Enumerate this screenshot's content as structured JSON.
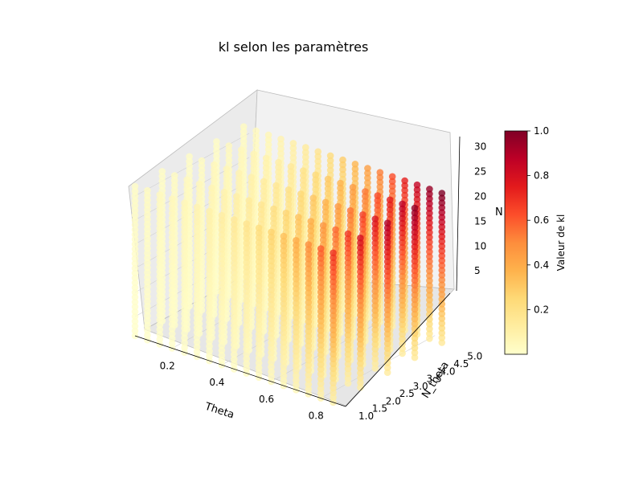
{
  "chart_data": {
    "type": "scatter",
    "projection": "3d",
    "title": "kl selon les paramètres",
    "xlabel": "Theta",
    "ylabel": "N_theta",
    "zlabel": "N",
    "colorbar_label": "Valeur de kl",
    "colormap": "YlOrRd",
    "marker_alpha": 0.8,
    "x_ticks": [
      "0.2",
      "0.4",
      "0.6",
      "0.8"
    ],
    "y_ticks": [
      "1.0",
      "1.5",
      "2.0",
      "2.5",
      "3.0",
      "3.5",
      "4.0",
      "4.5",
      "5.0"
    ],
    "z_ticks": [
      "5",
      "10",
      "15",
      "20",
      "25",
      "30"
    ],
    "colorbar_ticks": [
      "0.2",
      "0.4",
      "0.6",
      "0.8",
      "1.0"
    ],
    "xlim": [
      0.05,
      0.9
    ],
    "ylim": [
      1.0,
      5.2
    ],
    "zlim": [
      1,
      32
    ],
    "colorbar_range": [
      0.0,
      1.0
    ],
    "grid": true,
    "series": [
      {
        "n_theta": 1,
        "theta": [
          0.05,
          0.1,
          0.15,
          0.2,
          0.25,
          0.3,
          0.35,
          0.4,
          0.45,
          0.5,
          0.55,
          0.6,
          0.65,
          0.7,
          0.75,
          0.8,
          0.85
        ],
        "n_range": [
          1,
          32
        ],
        "kl_at_max": [
          0.02,
          0.03,
          0.04,
          0.05,
          0.06,
          0.08,
          0.1,
          0.12,
          0.15,
          0.18,
          0.22,
          0.27,
          0.33,
          0.4,
          0.5,
          0.6,
          0.7
        ]
      },
      {
        "n_theta": 2,
        "theta": [
          0.05,
          0.1,
          0.15,
          0.2,
          0.25,
          0.3,
          0.35,
          0.4,
          0.45,
          0.5,
          0.55,
          0.6,
          0.65,
          0.7,
          0.75,
          0.8,
          0.85
        ],
        "n_range": [
          1,
          32
        ],
        "kl_at_max": [
          0.02,
          0.03,
          0.04,
          0.05,
          0.07,
          0.09,
          0.11,
          0.14,
          0.17,
          0.21,
          0.26,
          0.32,
          0.39,
          0.47,
          0.57,
          0.68,
          0.8
        ]
      },
      {
        "n_theta": 3,
        "theta": [
          0.05,
          0.1,
          0.15,
          0.2,
          0.25,
          0.3,
          0.35,
          0.4,
          0.45,
          0.5,
          0.55,
          0.6,
          0.65,
          0.7,
          0.75,
          0.8,
          0.85
        ],
        "n_range": [
          1,
          32
        ],
        "kl_at_max": [
          0.02,
          0.03,
          0.05,
          0.06,
          0.08,
          0.1,
          0.13,
          0.16,
          0.2,
          0.25,
          0.31,
          0.38,
          0.46,
          0.55,
          0.66,
          0.78,
          0.9
        ]
      },
      {
        "n_theta": 4,
        "theta": [
          0.05,
          0.1,
          0.15,
          0.2,
          0.25,
          0.3,
          0.35,
          0.4,
          0.45,
          0.5,
          0.55,
          0.6,
          0.65,
          0.7,
          0.75,
          0.8,
          0.85
        ],
        "n_range": [
          1,
          32
        ],
        "kl_at_max": [
          0.02,
          0.04,
          0.05,
          0.07,
          0.09,
          0.12,
          0.15,
          0.19,
          0.24,
          0.3,
          0.37,
          0.45,
          0.54,
          0.64,
          0.75,
          0.87,
          0.96
        ]
      },
      {
        "n_theta": 5,
        "theta": [
          0.05,
          0.1,
          0.15,
          0.2,
          0.25,
          0.3,
          0.35,
          0.4,
          0.45,
          0.5,
          0.55,
          0.6,
          0.65,
          0.7,
          0.75,
          0.8,
          0.85
        ],
        "n_range": [
          1,
          32
        ],
        "kl_at_max": [
          0.03,
          0.04,
          0.06,
          0.08,
          0.11,
          0.14,
          0.18,
          0.23,
          0.29,
          0.36,
          0.44,
          0.53,
          0.63,
          0.74,
          0.85,
          0.95,
          1.0
        ]
      }
    ]
  }
}
